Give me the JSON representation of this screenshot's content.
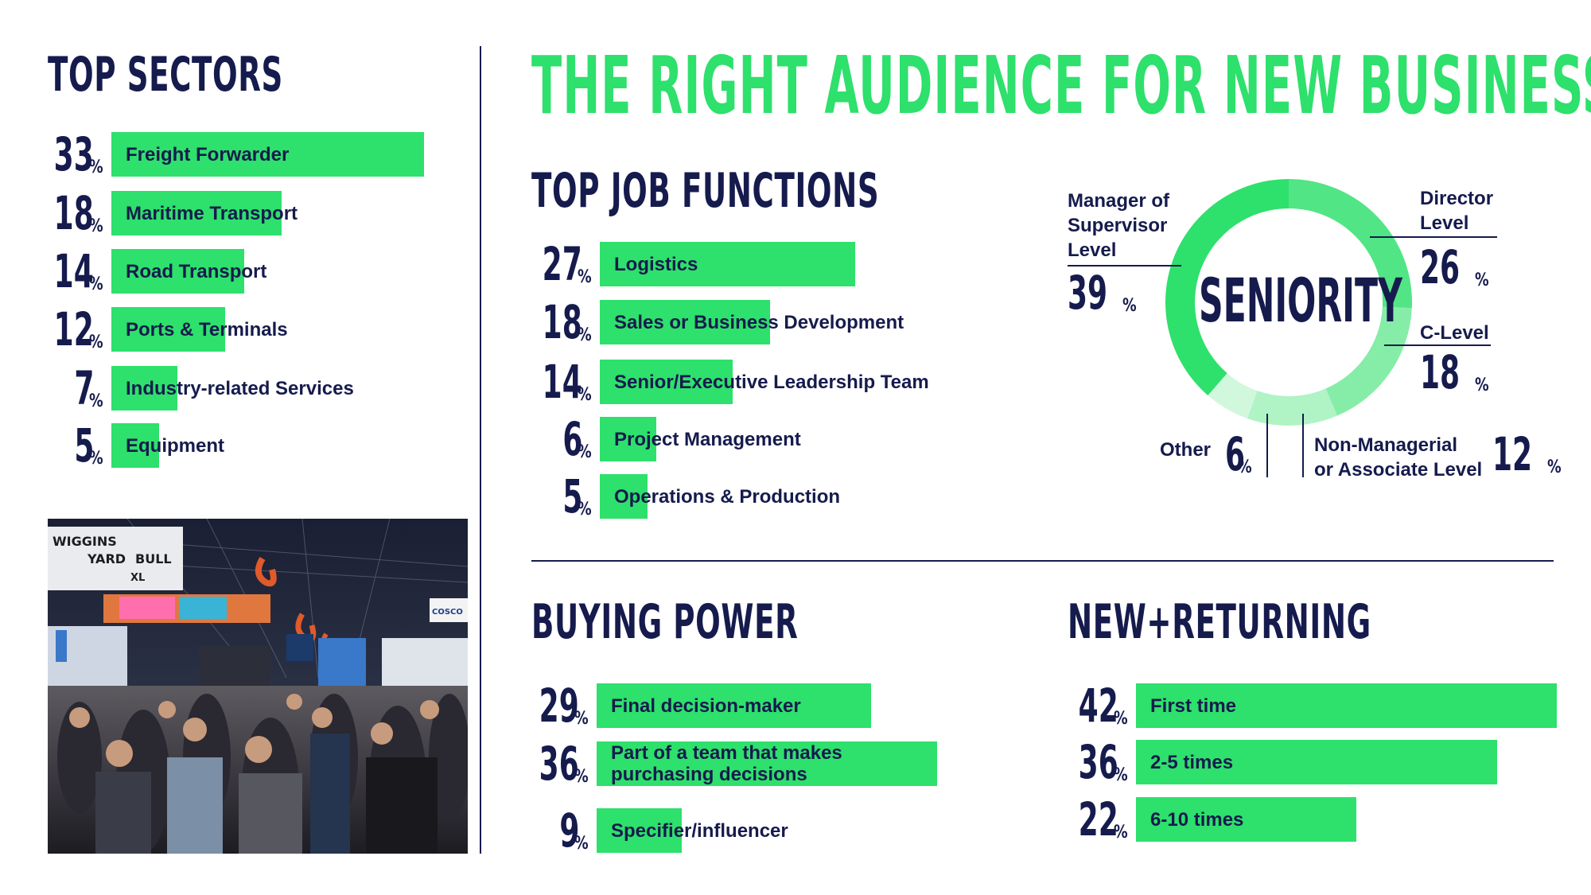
{
  "main_title": "THE RIGHT AUDIENCE FOR NEW BUSINESS",
  "colors": {
    "accent": "#2ee06c",
    "navy": "#161b4d"
  },
  "chart_data": [
    {
      "type": "bar",
      "title": "TOP SECTORS",
      "categories": [
        "Freight Forwarder",
        "Maritime Transport",
        "Road Transport",
        "Ports & Terminals",
        "Industry-related Services",
        "Equipment"
      ],
      "values": [
        33,
        18,
        14,
        12,
        7,
        5
      ],
      "value_suffix": "%"
    },
    {
      "type": "bar",
      "title": "TOP JOB FUNCTIONS",
      "categories": [
        "Logistics",
        "Sales or Business Development",
        "Senior/Executive Leadership Team",
        "Project Management",
        "Operations & Production"
      ],
      "values": [
        27,
        18,
        14,
        6,
        5
      ],
      "value_suffix": "%"
    },
    {
      "type": "pie",
      "title": "SENIORITY",
      "categories": [
        "Manager of Supervisor Level",
        "Director Level",
        "C-Level",
        "Non-Managerial or Associate Level",
        "Other"
      ],
      "values": [
        39,
        26,
        18,
        12,
        6
      ],
      "value_suffix": "%"
    },
    {
      "type": "bar",
      "title": "BUYING POWER",
      "categories": [
        "Final decision-maker",
        "Part of a team that makes purchasing decisions",
        "Specifier/influencer"
      ],
      "values": [
        29,
        36,
        9
      ],
      "value_suffix": "%"
    },
    {
      "type": "bar",
      "title": "NEW+RETURNING",
      "categories": [
        "First time",
        "2-5 times",
        "6-10 times"
      ],
      "values": [
        42,
        36,
        22
      ],
      "value_suffix": "%"
    }
  ],
  "seniority_labels": {
    "manager_line1": "Manager of",
    "manager_line2": "Supervisor",
    "manager_line3": "Level",
    "director_line1": "Director",
    "director_line2": "Level",
    "clevel": "C-Level",
    "nonmgr_line1": "Non-Managerial",
    "nonmgr_line2": "or Associate Level",
    "other": "Other"
  },
  "buying_labels": {
    "team_line1": "Part of a team that makes",
    "team_line2": "purchasing decisions"
  },
  "photo_signs": {
    "sign1_line1": "WIGGINS",
    "sign1_line2": "YARD",
    "sign1_line3": "BULL",
    "sign2": "XL",
    "sign3": "COSCO"
  }
}
